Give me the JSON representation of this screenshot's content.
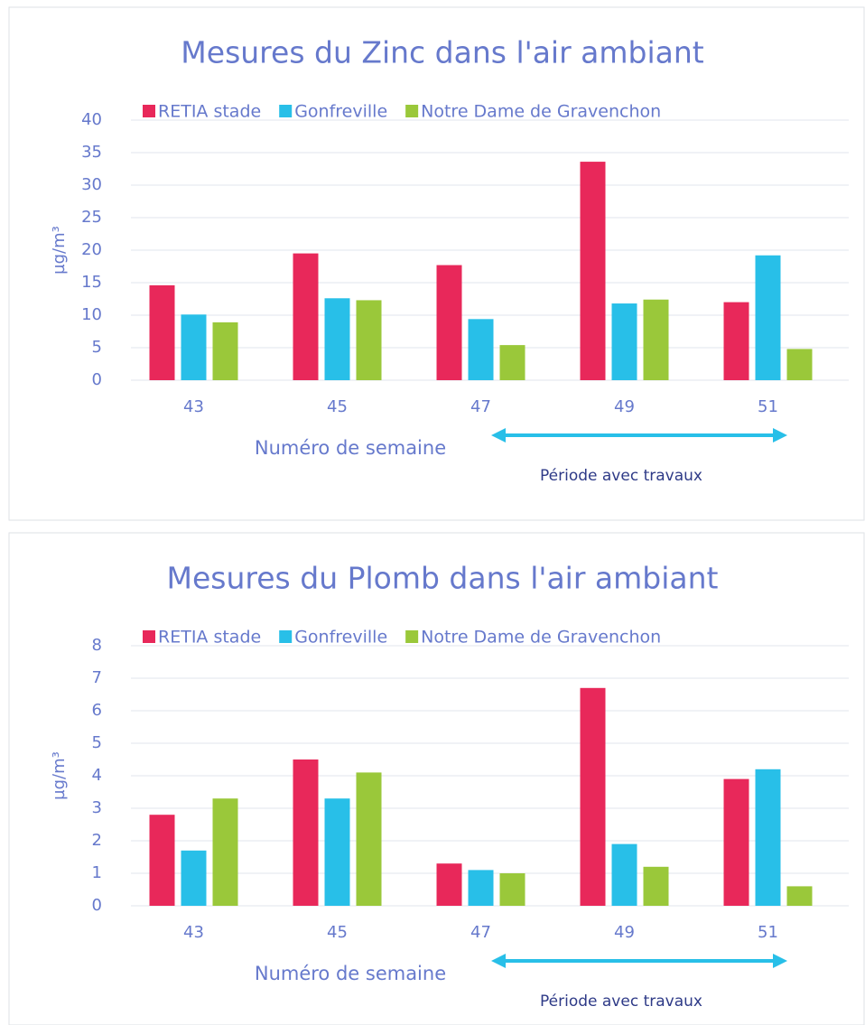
{
  "chart_data": [
    {
      "type": "bar",
      "title": "Mesures du Zinc dans l'air ambiant",
      "categories": [
        "43",
        "45",
        "47",
        "49",
        "51"
      ],
      "series": [
        {
          "name": "RETIA stade",
          "color": "#e8285a",
          "values": [
            14.6,
            19.5,
            17.7,
            33.6,
            12.0
          ]
        },
        {
          "name": "Gonfreville",
          "color": "#28bfe8",
          "values": [
            10.1,
            12.6,
            9.4,
            11.8,
            19.2
          ]
        },
        {
          "name": "Notre Dame de Gravenchon",
          "color": "#9ac83a",
          "values": [
            8.9,
            12.3,
            5.4,
            12.4,
            4.8
          ]
        }
      ],
      "ylabel": "µg/m³",
      "xlabel": "Numéro de semaine",
      "annotation": "Période avec travaux",
      "ylim": [
        0,
        40
      ],
      "yticks": [
        0,
        5,
        10,
        15,
        20,
        25,
        30,
        35,
        40
      ],
      "grid": true,
      "legend": "top"
    },
    {
      "type": "bar",
      "title": "Mesures du Plomb dans l'air ambiant",
      "categories": [
        "43",
        "45",
        "47",
        "49",
        "51"
      ],
      "series": [
        {
          "name": "RETIA stade",
          "color": "#e8285a",
          "values": [
            2.8,
            4.5,
            1.3,
            6.7,
            3.9
          ]
        },
        {
          "name": "Gonfreville",
          "color": "#28bfe8",
          "values": [
            1.7,
            3.3,
            1.1,
            1.9,
            4.2
          ]
        },
        {
          "name": "Notre Dame de Gravenchon",
          "color": "#9ac83a",
          "values": [
            3.3,
            4.1,
            1.0,
            1.2,
            0.6
          ]
        }
      ],
      "ylabel": "µg/m³",
      "xlabel": "Numéro de semaine",
      "annotation": "Période avec travaux",
      "ylim": [
        0,
        8
      ],
      "yticks": [
        0,
        1,
        2,
        3,
        4,
        5,
        6,
        7,
        8
      ],
      "grid": true,
      "legend": "top"
    }
  ]
}
